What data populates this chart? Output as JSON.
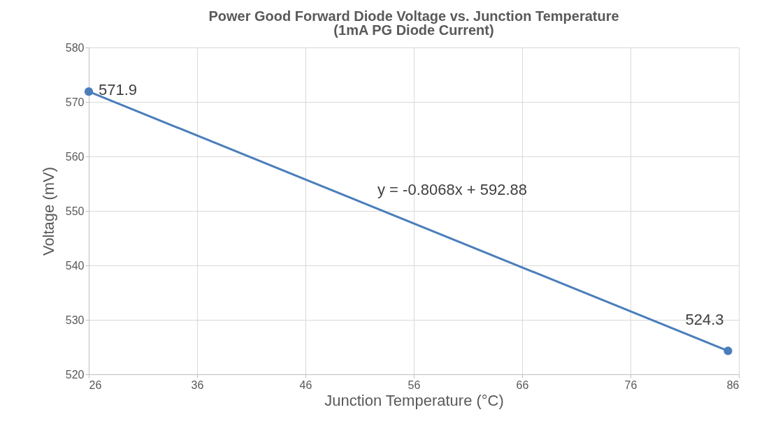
{
  "chart_data": {
    "type": "line",
    "title": "Power Good Forward Diode Voltage vs. Junction Temperature",
    "subtitle": "(1mA PG Diode Current)",
    "xlabel": "Junction Temperature (°C)",
    "ylabel": "Voltage (mV)",
    "x": [
      26,
      85
    ],
    "series": [
      {
        "color": "#4a7ebb",
        "values": [
          571.9,
          524.3
        ]
      }
    ],
    "annotations": [
      "y = -0.8068x + 592.88"
    ],
    "data_labels": true,
    "marker": "circle",
    "grid": true,
    "xlim": [
      26,
      86
    ],
    "xticks": [
      26,
      36,
      46,
      56,
      66,
      76,
      86
    ],
    "ylim": [
      520,
      580
    ],
    "yticks": [
      520,
      530,
      540,
      550,
      560,
      570,
      580
    ]
  }
}
